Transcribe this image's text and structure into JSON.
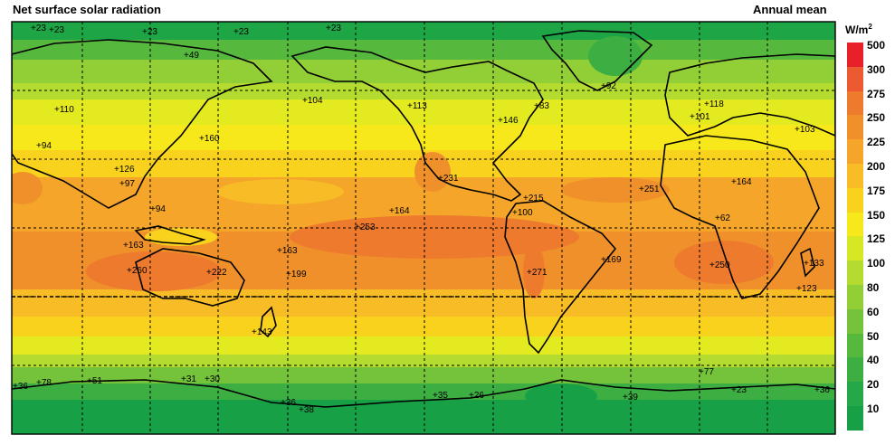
{
  "title_left": "Net surface solar radiation",
  "title_right": "Annual mean",
  "unit": "W/m",
  "unit_exp": "2",
  "legend": {
    "levels": [
      "500",
      "300",
      "275",
      "250",
      "225",
      "200",
      "175",
      "150",
      "125",
      "100",
      "80",
      "60",
      "50",
      "40",
      "20",
      "10"
    ],
    "colors": [
      "#e8202a",
      "#ec5a32",
      "#ee7a2e",
      "#f0902a",
      "#f4a52a",
      "#f7bc26",
      "#f9d21e",
      "#f6e81a",
      "#d6e824",
      "#b4dc30",
      "#92cf36",
      "#74c33a",
      "#56b93e",
      "#3cae42",
      "#24a848",
      "#17a046"
    ]
  },
  "annotations": [
    "+23",
    "+23",
    "+23",
    "+23",
    "+23",
    "+49",
    "+110",
    "+104",
    "+113",
    "+83",
    "+92",
    "+118",
    "+101",
    "+103",
    "+160",
    "+94",
    "+126",
    "+97",
    "+94",
    "+146",
    "+164",
    "+231",
    "+253",
    "+215",
    "+251",
    "+164",
    "+100",
    "+62",
    "+163",
    "+199",
    "+169",
    "+222",
    "+260",
    "+271",
    "+250",
    "+163",
    "+133",
    "+143",
    "+123",
    "+77",
    "+36",
    "+78",
    "+51",
    "+31",
    "+30",
    "+36",
    "+26",
    "+35",
    "+39",
    "+38",
    "+23",
    "+36"
  ]
}
